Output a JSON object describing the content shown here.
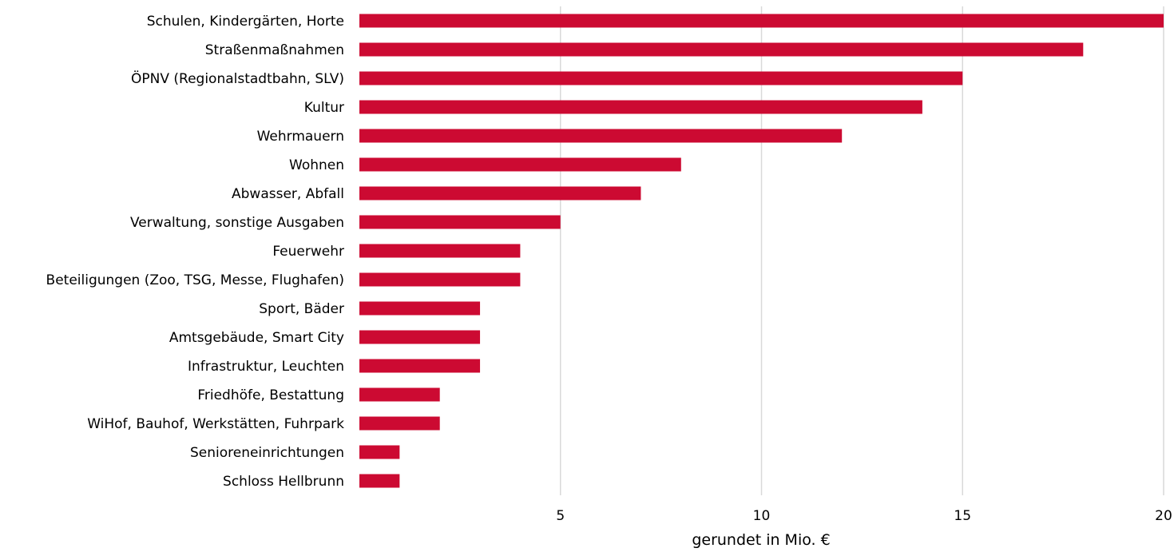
{
  "chart_data": {
    "type": "bar",
    "orientation": "horizontal",
    "categories": [
      "Schulen, Kindergärten, Horte",
      "Straßenmaßnahmen",
      "ÖPNV (Regionalstadtbahn, SLV)",
      "Kultur",
      "Wehrmauern",
      "Wohnen",
      "Abwasser, Abfall",
      "Verwaltung, sonstige Ausgaben",
      "Feuerwehr",
      "Beteiligungen (Zoo, TSG, Messe, Flughafen)",
      "Sport, Bäder",
      "Amtsgebäude, Smart City",
      "Infrastruktur, Leuchten",
      "Friedhöfe, Bestattung",
      "WiHof, Bauhof, Werkstätten, Fuhrpark",
      "Senioreneinrichtungen",
      "Schloss Hellbrunn"
    ],
    "values": [
      20,
      18,
      15,
      14,
      12,
      8,
      7,
      5,
      4,
      4,
      3,
      3,
      3,
      2,
      2,
      1,
      1
    ],
    "xlabel": "gerundet in Mio. €",
    "xlim": [
      0,
      20
    ],
    "xticks": [
      5,
      10,
      15,
      20
    ],
    "grid": "vertical",
    "legend": "none",
    "colors": {
      "bar": "#cc0a32",
      "grid": "#d9d9d9",
      "text": "#000000"
    }
  }
}
